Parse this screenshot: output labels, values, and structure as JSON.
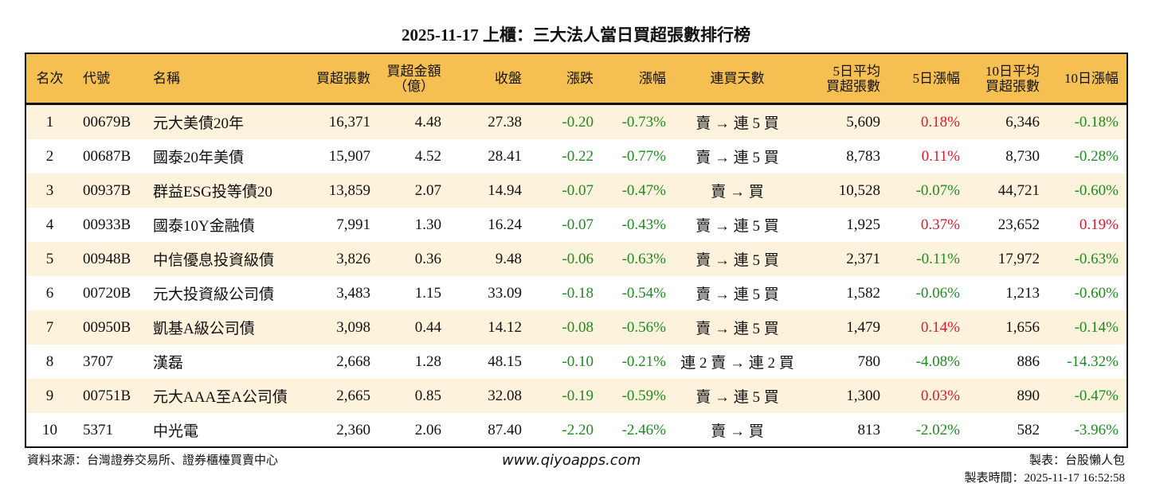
{
  "title": "2025-11-17 上櫃：三大法人當日買超張數排行榜",
  "headers": [
    "名次",
    "代號",
    "名稱",
    "買超張數",
    "買超金額\n（億）",
    "收盤",
    "漲跌",
    "漲幅",
    "連買天數",
    "5日平均\n買超張數",
    "5日漲幅",
    "10日平均\n買超張數",
    "10日漲幅"
  ],
  "colors": {
    "header_bg": "#F5BF52",
    "row_alt_bg": "#FDF3DC",
    "up": "#E0182D",
    "down": "#1E8B1E"
  },
  "rows": [
    [
      "1",
      "00679B",
      "元大美債20年",
      "16,371",
      "4.48",
      "27.38",
      "-0.20",
      "-0.73%",
      "賣 → 連 5 買",
      "5,609",
      "0.18%",
      "6,346",
      "-0.18%"
    ],
    [
      "2",
      "00687B",
      "國泰20年美債",
      "15,907",
      "4.52",
      "28.41",
      "-0.22",
      "-0.77%",
      "賣 → 連 5 買",
      "8,783",
      "0.11%",
      "8,730",
      "-0.28%"
    ],
    [
      "3",
      "00937B",
      "群益ESG投等債20",
      "13,859",
      "2.07",
      "14.94",
      "-0.07",
      "-0.47%",
      "賣 → 買",
      "10,528",
      "-0.07%",
      "44,721",
      "-0.60%"
    ],
    [
      "4",
      "00933B",
      "國泰10Y金融債",
      "7,991",
      "1.30",
      "16.24",
      "-0.07",
      "-0.43%",
      "賣 → 連 5 買",
      "1,925",
      "0.37%",
      "23,652",
      "0.19%"
    ],
    [
      "5",
      "00948B",
      "中信優息投資級債",
      "3,826",
      "0.36",
      "9.48",
      "-0.06",
      "-0.63%",
      "賣 → 連 5 買",
      "2,371",
      "-0.11%",
      "17,972",
      "-0.63%"
    ],
    [
      "6",
      "00720B",
      "元大投資級公司債",
      "3,483",
      "1.15",
      "33.09",
      "-0.18",
      "-0.54%",
      "賣 → 連 5 買",
      "1,582",
      "-0.06%",
      "1,213",
      "-0.60%"
    ],
    [
      "7",
      "00950B",
      "凱基A級公司債",
      "3,098",
      "0.44",
      "14.12",
      "-0.08",
      "-0.56%",
      "賣 → 連 5 買",
      "1,479",
      "0.14%",
      "1,656",
      "-0.14%"
    ],
    [
      "8",
      "3707",
      "漢磊",
      "2,668",
      "1.28",
      "48.15",
      "-0.10",
      "-0.21%",
      "連 2 賣 → 連 2 買",
      "780",
      "-4.08%",
      "886",
      "-14.32%"
    ],
    [
      "9",
      "00751B",
      "元大AAA至A公司債",
      "2,665",
      "0.85",
      "32.08",
      "-0.19",
      "-0.59%",
      "賣 → 連 5 買",
      "1,300",
      "0.03%",
      "890",
      "-0.47%"
    ],
    [
      "10",
      "5371",
      "中光電",
      "2,360",
      "2.06",
      "87.40",
      "-2.20",
      "-2.46%",
      "賣 → 買",
      "813",
      "-2.02%",
      "582",
      "-3.96%"
    ]
  ],
  "footer": {
    "source": "資料來源：台灣證券交易所、證券櫃檯買賣中心",
    "website": "www.qiyoapps.com",
    "maker": "製表：台股懶人包",
    "time": "製表時間：2025-11-17 16:52:58"
  }
}
